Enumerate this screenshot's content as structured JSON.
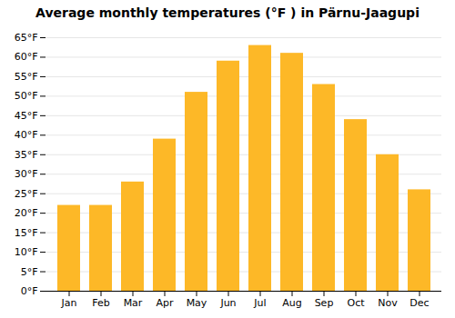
{
  "chart_data": {
    "type": "bar",
    "title": "Average monthly temperatures (°F ) in Pärnu-Jaagupi",
    "categories": [
      "Jan",
      "Feb",
      "Mar",
      "Apr",
      "May",
      "Jun",
      "Jul",
      "Aug",
      "Sep",
      "Oct",
      "Nov",
      "Dec"
    ],
    "values": [
      22,
      22,
      28,
      39,
      51,
      59,
      63,
      61,
      53,
      44,
      35,
      26
    ],
    "color": "#FDB827",
    "ylim": [
      0,
      65
    ],
    "yticks": [
      {
        "value": 0,
        "label": "0°F"
      },
      {
        "value": 5,
        "label": "5°F"
      },
      {
        "value": 10,
        "label": "10°F"
      },
      {
        "value": 15,
        "label": "15°F"
      },
      {
        "value": 20,
        "label": "20°F"
      },
      {
        "value": 25,
        "label": "25°F"
      },
      {
        "value": 30,
        "label": "30°F"
      },
      {
        "value": 35,
        "label": "35°F"
      },
      {
        "value": 40,
        "label": "40°F"
      },
      {
        "value": 45,
        "label": "45°F"
      },
      {
        "value": 50,
        "label": "50°F"
      },
      {
        "value": 55,
        "label": "55°F"
      },
      {
        "value": 60,
        "label": "60°F"
      },
      {
        "value": 65,
        "label": "65°F"
      }
    ],
    "grid": true
  }
}
